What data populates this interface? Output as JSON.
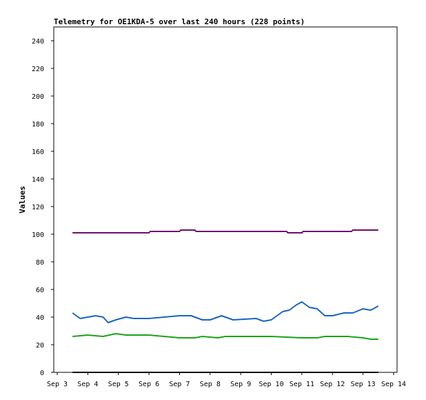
{
  "chart_data": {
    "type": "line",
    "title": "Telemetry for OE1KDA-5 over last 240 hours (228 points)",
    "xlabel": "",
    "ylabel": "Values",
    "xlim": [
      "Sep 3",
      "Sep 14"
    ],
    "ylim": [
      0,
      250
    ],
    "x_ticks": [
      "Sep 3",
      "Sep 4",
      "Sep 5",
      "Sep 6",
      "Sep 7",
      "Sep 8",
      "Sep 9",
      "Sep 10",
      "Sep 11",
      "Sep 12",
      "Sep 13",
      "Sep 14"
    ],
    "y_ticks": [
      0,
      20,
      40,
      60,
      80,
      100,
      120,
      140,
      160,
      180,
      200,
      220,
      240
    ],
    "grid": false,
    "legend": "none",
    "series": [
      {
        "color": "#6b0f6b",
        "points": [
          [
            "Sep 3 12:00",
            101
          ],
          [
            "Sep 4 12:00",
            101
          ],
          [
            "Sep 5 12:00",
            101
          ],
          [
            "Sep 6 00:00",
            101
          ],
          [
            "Sep 6 01:00",
            102
          ],
          [
            "Sep 7 00:00",
            102
          ],
          [
            "Sep 7 01:00",
            103
          ],
          [
            "Sep 7 12:00",
            103
          ],
          [
            "Sep 7 13:00",
            102
          ],
          [
            "Sep 8 12:00",
            102
          ],
          [
            "Sep 9 12:00",
            102
          ],
          [
            "Sep 10 12:00",
            102
          ],
          [
            "Sep 10 13:00",
            101
          ],
          [
            "Sep 11 00:00",
            101
          ],
          [
            "Sep 11 01:00",
            102
          ],
          [
            "Sep 12 15:00",
            102
          ],
          [
            "Sep 12 16:00",
            103
          ],
          [
            "Sep 13 12:00",
            103
          ]
        ]
      },
      {
        "color": "#1a63c0",
        "points": [
          [
            "Sep 3 12:00",
            43
          ],
          [
            "Sep 3 18:00",
            39
          ],
          [
            "Sep 4 00:00",
            40
          ],
          [
            "Sep 4 06:00",
            41
          ],
          [
            "Sep 4 12:00",
            40
          ],
          [
            "Sep 4 16:00",
            36
          ],
          [
            "Sep 4 22:00",
            38
          ],
          [
            "Sep 5 06:00",
            40
          ],
          [
            "Sep 5 12:00",
            39
          ],
          [
            "Sep 6 00:00",
            39
          ],
          [
            "Sep 7 00:00",
            41
          ],
          [
            "Sep 7 09:00",
            41
          ],
          [
            "Sep 7 18:00",
            38
          ],
          [
            "Sep 8 00:00",
            38
          ],
          [
            "Sep 8 09:00",
            41
          ],
          [
            "Sep 8 18:00",
            38
          ],
          [
            "Sep 9 12:00",
            39
          ],
          [
            "Sep 9 18:00",
            37
          ],
          [
            "Sep 10 00:00",
            38
          ],
          [
            "Sep 10 09:00",
            44
          ],
          [
            "Sep 10 14:00",
            45
          ],
          [
            "Sep 10 20:00",
            49
          ],
          [
            "Sep 11 00:00",
            51
          ],
          [
            "Sep 11 06:00",
            47
          ],
          [
            "Sep 11 12:00",
            46
          ],
          [
            "Sep 11 18:00",
            41
          ],
          [
            "Sep 12 00:00",
            41
          ],
          [
            "Sep 12 09:00",
            43
          ],
          [
            "Sep 12 16:00",
            43
          ],
          [
            "Sep 13 00:00",
            46
          ],
          [
            "Sep 13 06:00",
            45
          ],
          [
            "Sep 13 12:00",
            48
          ]
        ]
      },
      {
        "color": "#19a319",
        "points": [
          [
            "Sep 3 12:00",
            26
          ],
          [
            "Sep 4 00:00",
            27
          ],
          [
            "Sep 4 12:00",
            26
          ],
          [
            "Sep 4 22:00",
            28
          ],
          [
            "Sep 5 06:00",
            27
          ],
          [
            "Sep 6 00:00",
            27
          ],
          [
            "Sep 7 00:00",
            25
          ],
          [
            "Sep 7 12:00",
            25
          ],
          [
            "Sep 7 18:00",
            26
          ],
          [
            "Sep 8 06:00",
            25
          ],
          [
            "Sep 8 12:00",
            26
          ],
          [
            "Sep 9 12:00",
            26
          ],
          [
            "Sep 10 00:00",
            26
          ],
          [
            "Sep 11 00:00",
            25
          ],
          [
            "Sep 11 12:00",
            25
          ],
          [
            "Sep 11 18:00",
            26
          ],
          [
            "Sep 12 12:00",
            26
          ],
          [
            "Sep 13 00:00",
            25
          ],
          [
            "Sep 13 06:00",
            24
          ],
          [
            "Sep 13 12:00",
            24
          ]
        ]
      },
      {
        "color": "#000000",
        "points": [
          [
            "Sep 3 12:00",
            0
          ],
          [
            "Sep 13 12:00",
            0
          ]
        ]
      }
    ]
  }
}
